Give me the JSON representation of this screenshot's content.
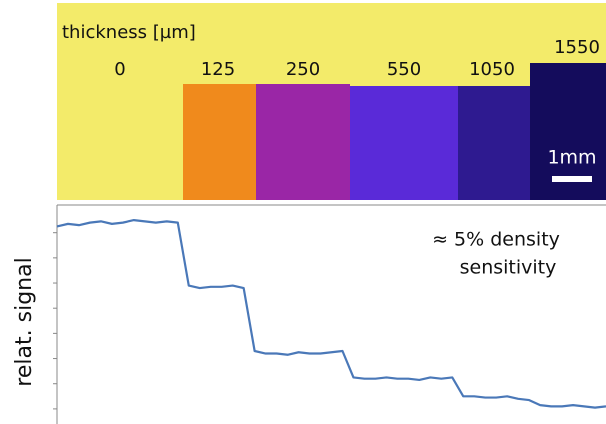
{
  "image": {
    "thickness_label": "thickness [µm]",
    "step_labels": [
      "0",
      "125",
      "250",
      "550",
      "1050",
      "1550"
    ],
    "scale_bar": "1mm"
  },
  "chart_data": {
    "type": "line",
    "y_label": "relat. signal",
    "annotation": [
      "≈ 5% density",
      "sensitivity"
    ],
    "xlim": [
      0,
      100
    ],
    "ylim": [
      -0.6,
      8.1
    ],
    "yticks": [
      0,
      1,
      2,
      3,
      4,
      5,
      6,
      7
    ],
    "x": [
      0,
      2,
      4,
      6,
      8,
      10,
      12,
      14,
      16,
      18,
      20,
      22,
      24,
      26,
      28,
      30,
      32,
      34,
      36,
      38,
      40,
      42,
      44,
      46,
      48,
      50,
      52,
      54,
      56,
      58,
      60,
      62,
      64,
      66,
      68,
      70,
      72,
      74,
      76,
      78,
      80,
      82,
      84,
      86,
      88,
      90,
      92,
      94,
      96,
      98,
      100
    ],
    "series": [
      {
        "color": "#4a78b8",
        "values": [
          7.25,
          7.35,
          7.3,
          7.4,
          7.45,
          7.35,
          7.4,
          7.5,
          7.45,
          7.4,
          7.45,
          7.4,
          4.9,
          4.8,
          4.85,
          4.85,
          4.9,
          4.8,
          2.3,
          2.2,
          2.2,
          2.15,
          2.25,
          2.2,
          2.2,
          2.25,
          2.3,
          1.25,
          1.2,
          1.2,
          1.25,
          1.2,
          1.2,
          1.15,
          1.25,
          1.2,
          1.25,
          0.5,
          0.5,
          0.45,
          0.45,
          0.5,
          0.4,
          0.35,
          0.15,
          0.1,
          0.1,
          0.15,
          0.1,
          0.05,
          0.1
        ]
      }
    ]
  }
}
